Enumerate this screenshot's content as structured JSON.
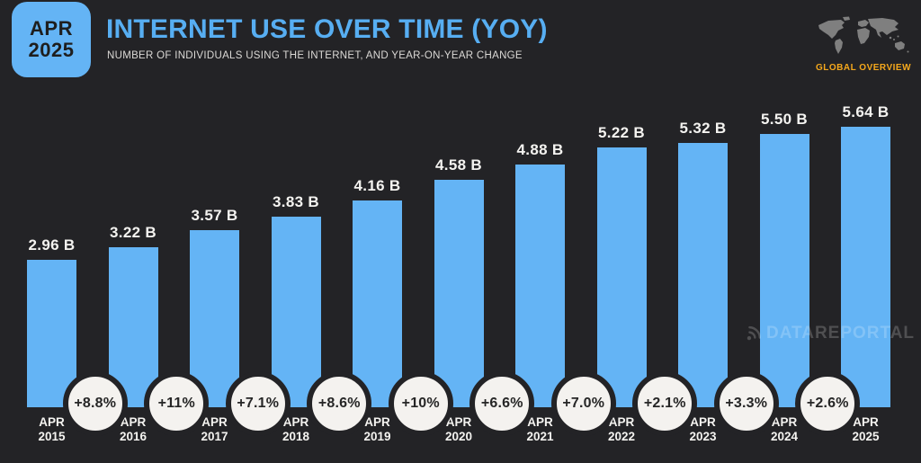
{
  "header": {
    "badge_month": "APR",
    "badge_year": "2025",
    "title": "INTERNET USE OVER TIME (YOY)",
    "subtitle": "NUMBER OF INDIVIDUALS USING THE INTERNET, AND YEAR-ON-YEAR CHANGE",
    "overview_label": "GLOBAL OVERVIEW"
  },
  "watermark": {
    "text": "DATAREPORTAL"
  },
  "chart_data": {
    "type": "bar",
    "title": "INTERNET USE OVER TIME (YOY)",
    "subtitle": "NUMBER OF INDIVIDUALS USING THE INTERNET, AND YEAR-ON-YEAR CHANGE",
    "categories": [
      "APR 2015",
      "APR 2016",
      "APR 2017",
      "APR 2018",
      "APR 2019",
      "APR 2020",
      "APR 2021",
      "APR 2022",
      "APR 2023",
      "APR 2024",
      "APR 2025"
    ],
    "values": [
      2.96,
      3.22,
      3.57,
      3.83,
      4.16,
      4.58,
      4.88,
      5.22,
      5.32,
      5.5,
      5.64
    ],
    "value_labels": [
      "2.96 B",
      "3.22 B",
      "3.57 B",
      "3.83 B",
      "4.16 B",
      "4.58 B",
      "4.88 B",
      "5.22 B",
      "5.32 B",
      "5.50 B",
      "5.64 B"
    ],
    "yoy_labels": [
      "+8.8%",
      "+11%",
      "+7.1%",
      "+8.6%",
      "+10%",
      "+6.6%",
      "+7.0%",
      "+2.1%",
      "+3.3%",
      "+2.6%"
    ],
    "unit": "B",
    "ylim": [
      0,
      5.64
    ],
    "grid": false,
    "legend": false
  },
  "colors": {
    "background": "#232326",
    "bar": "#64B4F5",
    "accent_blue": "#57AEF2",
    "circle_fill": "#F4F2EF",
    "circle_text": "#262626",
    "orange": "#F5A81C",
    "map_gray": "#7F7F7F",
    "text_light": "#F4F3F0"
  }
}
